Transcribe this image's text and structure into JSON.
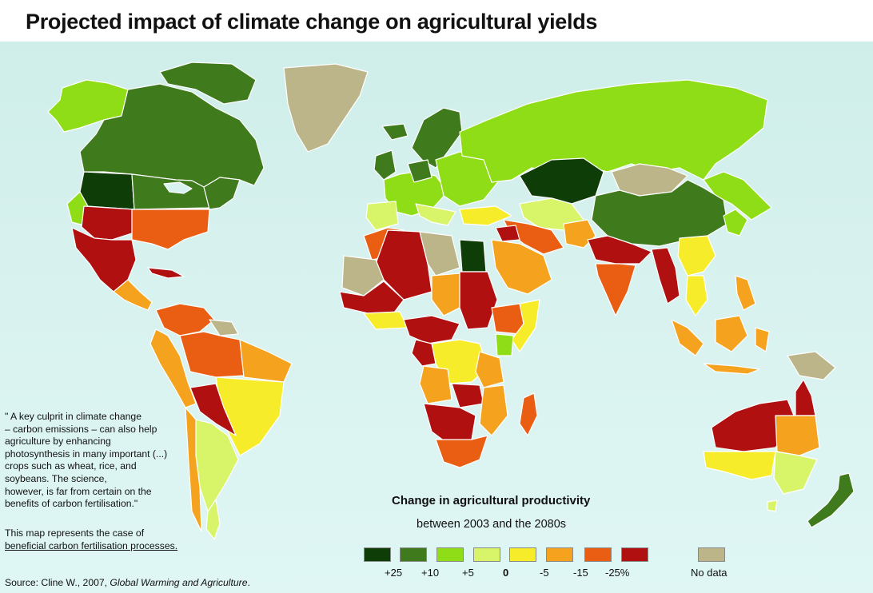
{
  "title": "Projected impact of climate change on agricultural yields",
  "quote": {
    "line1": "\" A key culprit in climate change",
    "line2": "– carbon emissions – can also help",
    "line3": "agriculture by enhancing",
    "line4": "photosynthesis in many important (...)",
    "line5": "crops such as wheat, rice, and",
    "line6": "soybeans. The science,",
    "line7": "however, is far from certain on the",
    "line8": "benefits of carbon fertilisation.\""
  },
  "note": {
    "line1": "This map represents the case of",
    "line2": "beneficial carbon fertilisation processes."
  },
  "source": {
    "prefix": "Source: Cline W., 2007, ",
    "work": "Global Warming and Agriculture",
    "suffix": "."
  },
  "legend": {
    "title": "Change in agricultural productivity",
    "subtitle": "between 2003 and the 2080s",
    "classes": [
      {
        "label": "+25",
        "color": "#0e3d08"
      },
      {
        "label": "+10",
        "color": "#3f7a1c"
      },
      {
        "label": "+5",
        "color": "#8fdd16"
      },
      {
        "label": "0",
        "color": "#d8f56a"
      },
      {
        "label": "-5",
        "color": "#f7ec2a"
      },
      {
        "label": "-15",
        "color": "#f5a31e"
      },
      {
        "label": "-25%",
        "color": "#ea5e14"
      },
      {
        "label": "",
        "color": "#b01010"
      }
    ],
    "no_data": {
      "label": "No data",
      "color": "#bcb58a"
    }
  }
}
